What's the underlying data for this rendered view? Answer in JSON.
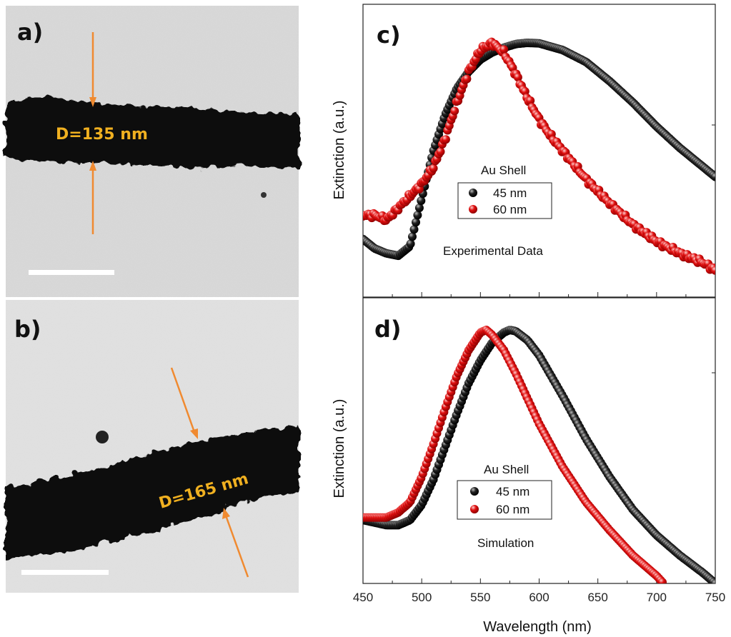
{
  "panels": {
    "a": {
      "label": "a)",
      "diameter_label": "D=135 nm"
    },
    "b": {
      "label": "b)",
      "diameter_label": "D=165 nm"
    },
    "c": {
      "label": "c)",
      "legend_title": "Au Shell",
      "annotation": "Experimental Data"
    },
    "d": {
      "label": "d)",
      "legend_title": "Au Shell",
      "annotation": "Simulation"
    }
  },
  "colors": {
    "arrow": "#f08a30",
    "label_text": "#f0b020",
    "series_45": "#000000",
    "series_60": "#e01010"
  },
  "shared_axis": {
    "xlabel": "Wavelength (nm)",
    "ylabel": "Extinction (a.u.)",
    "xlim": [
      450,
      750
    ],
    "xticks": [
      "450",
      "500",
      "550",
      "600",
      "650",
      "700",
      "750"
    ]
  },
  "chart_data": [
    {
      "type": "scatter",
      "panel": "c",
      "xlabel": "",
      "ylabel": "Extinction (a.u.)",
      "xlim": [
        450,
        750
      ],
      "ylim": [
        0,
        1
      ],
      "legend_title": "Au Shell",
      "series": [
        {
          "name": "45 nm",
          "color": "#000000",
          "x": [
            450,
            460,
            470,
            480,
            490,
            500,
            510,
            520,
            530,
            540,
            550,
            560,
            570,
            580,
            590,
            600,
            620,
            640,
            660,
            680,
            700,
            720,
            740,
            750
          ],
          "y": [
            0.18,
            0.14,
            0.12,
            0.11,
            0.15,
            0.35,
            0.55,
            0.7,
            0.81,
            0.88,
            0.93,
            0.96,
            0.98,
            0.995,
            1.0,
            0.998,
            0.97,
            0.92,
            0.84,
            0.75,
            0.65,
            0.56,
            0.48,
            0.44
          ]
        },
        {
          "name": "60 nm",
          "color": "#e01010",
          "x": [
            450,
            460,
            470,
            480,
            490,
            500,
            510,
            520,
            530,
            540,
            550,
            560,
            570,
            580,
            590,
            600,
            610,
            620,
            640,
            660,
            680,
            700,
            720,
            740,
            750
          ],
          "y": [
            0.28,
            0.28,
            0.26,
            0.31,
            0.36,
            0.41,
            0.48,
            0.6,
            0.75,
            0.88,
            0.97,
            1.0,
            0.96,
            0.87,
            0.77,
            0.68,
            0.61,
            0.55,
            0.43,
            0.33,
            0.24,
            0.17,
            0.12,
            0.08,
            0.05
          ]
        }
      ]
    },
    {
      "type": "scatter",
      "panel": "d",
      "xlabel": "Wavelength (nm)",
      "ylabel": "Extinction (a.u.)",
      "xlim": [
        450,
        750
      ],
      "ylim": [
        0,
        1
      ],
      "legend_title": "Au Shell",
      "series": [
        {
          "name": "45 nm",
          "color": "#000000",
          "x": [
            450,
            460,
            470,
            480,
            490,
            500,
            510,
            520,
            530,
            540,
            550,
            560,
            570,
            575,
            580,
            590,
            600,
            620,
            640,
            660,
            680,
            700,
            720,
            740,
            750
          ],
          "y": [
            0.25,
            0.24,
            0.23,
            0.23,
            0.25,
            0.31,
            0.41,
            0.54,
            0.67,
            0.79,
            0.88,
            0.95,
            0.99,
            1.0,
            0.995,
            0.96,
            0.9,
            0.74,
            0.57,
            0.42,
            0.29,
            0.19,
            0.11,
            0.04,
            0.0
          ]
        },
        {
          "name": "60 nm",
          "color": "#e01010",
          "x": [
            450,
            460,
            470,
            480,
            490,
            500,
            510,
            520,
            530,
            540,
            550,
            555,
            560,
            570,
            580,
            590,
            600,
            620,
            640,
            660,
            680,
            700,
            706
          ],
          "y": [
            0.26,
            0.26,
            0.26,
            0.28,
            0.32,
            0.42,
            0.55,
            0.69,
            0.82,
            0.92,
            0.99,
            1.0,
            0.98,
            0.92,
            0.83,
            0.73,
            0.63,
            0.46,
            0.32,
            0.21,
            0.11,
            0.03,
            0.0
          ]
        }
      ]
    }
  ]
}
